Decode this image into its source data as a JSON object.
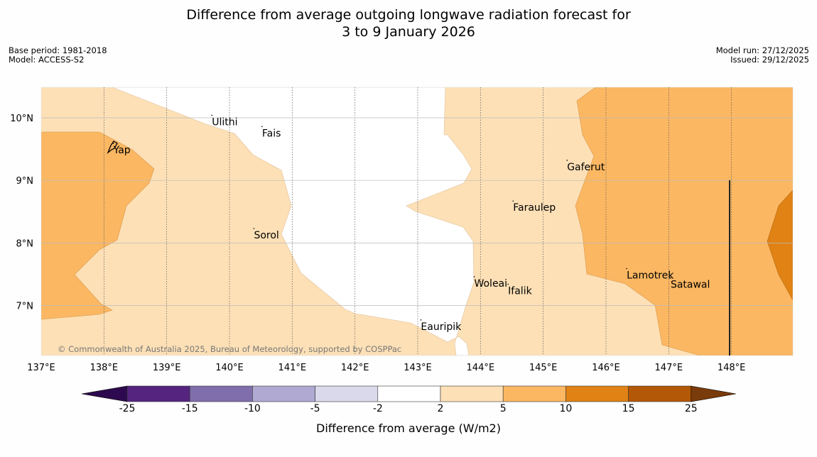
{
  "title": {
    "line1": "Difference from average outgoing longwave radiation forecast for",
    "line2": "3 to 9 January 2026"
  },
  "meta_left": {
    "base_period": "Base period: 1981-2018",
    "model": "Model: ACCESS-S2"
  },
  "meta_right": {
    "model_run": "Model run: 27/12/2025",
    "issued": "Issued: 29/12/2025"
  },
  "map": {
    "lon_labels": [
      "137°E",
      "138°E",
      "139°E",
      "140°E",
      "141°E",
      "142°E",
      "143°E",
      "144°E",
      "145°E",
      "146°E",
      "147°E",
      "148°E"
    ],
    "lat_labels": [
      "10°N",
      "9°N",
      "8°N",
      "7°N"
    ],
    "places": [
      {
        "name": "Yap",
        "lon": 138.15,
        "lat": 9.5
      },
      {
        "name": "Ulithi",
        "lon": 139.72,
        "lat": 9.95
      },
      {
        "name": "Fais",
        "lon": 140.52,
        "lat": 9.77
      },
      {
        "name": "Gaferut",
        "lon": 145.38,
        "lat": 9.23
      },
      {
        "name": "Faraulep",
        "lon": 144.52,
        "lat": 8.58
      },
      {
        "name": "Sorol",
        "lon": 140.39,
        "lat": 8.14
      },
      {
        "name": "Lamotrek",
        "lon": 146.33,
        "lat": 7.5
      },
      {
        "name": "Woleai",
        "lon": 143.9,
        "lat": 7.37
      },
      {
        "name": "Ifalik",
        "lon": 144.44,
        "lat": 7.25
      },
      {
        "name": "Satawal",
        "lon": 147.03,
        "lat": 7.35
      },
      {
        "name": "Eauripik",
        "lon": 143.05,
        "lat": 6.68
      }
    ],
    "copyright": "© Commonwealth of Australia 2025, Bureau of Meteorology, supported by COSPPac"
  },
  "colorbar": {
    "ticks": [
      "-25",
      "-15",
      "-10",
      "-5",
      "-2",
      "2",
      "5",
      "10",
      "15",
      "25"
    ],
    "colors": [
      "#54247f",
      "#7f6eab",
      "#b0a9d1",
      "#d9d9eb",
      "#ffffff",
      "#fde0b6",
      "#fbb762",
      "#e08214",
      "#b35806"
    ],
    "under_color": "#2d0a4f",
    "over_color": "#7a3b0a",
    "label": "Difference from average (W/m2)"
  }
}
